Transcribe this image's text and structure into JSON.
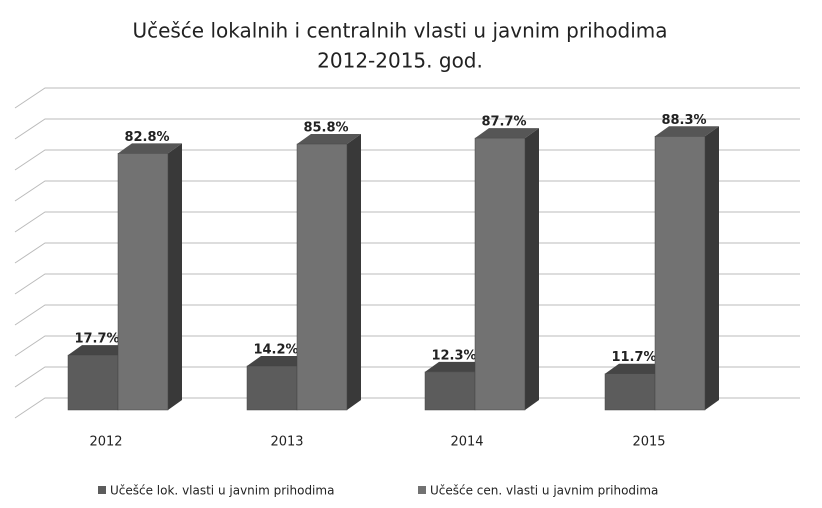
{
  "chart_data": {
    "type": "bar3d",
    "title": [
      "Učešće lokalnih i centralnih vlasti u javnim prihodima",
      "2012-2015. god."
    ],
    "categories": [
      "2012",
      "2013",
      "2014",
      "2015"
    ],
    "series": [
      {
        "name": "Učešće lok. vlasti u javnim prihodima",
        "color": "#5c5c5c",
        "values": [
          17.7,
          14.2,
          12.3,
          11.7
        ],
        "value_labels": [
          "17.7%",
          "14.2%",
          "12.3%",
          "11.7%"
        ]
      },
      {
        "name": "Učešće cen. vlasti u javnim prihodima",
        "color": "#727272",
        "values": [
          82.8,
          85.8,
          87.7,
          88.3
        ],
        "value_labels": [
          "82.8%",
          "85.8%",
          "87.7%",
          "88.3%"
        ]
      }
    ],
    "ylim": [
      0,
      100
    ],
    "yticks": [
      0,
      10,
      20,
      30,
      40,
      50,
      60,
      70,
      80,
      90,
      100
    ],
    "grid": true,
    "legend": "bottom"
  }
}
